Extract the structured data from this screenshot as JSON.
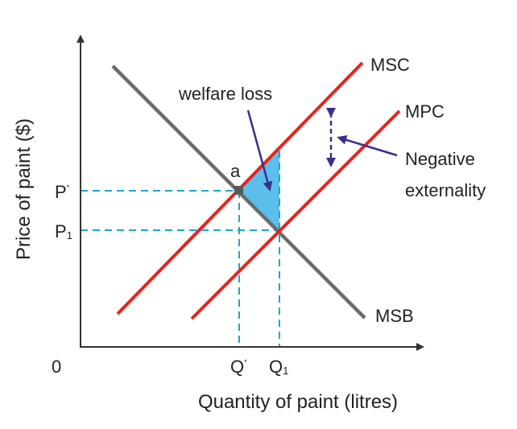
{
  "diagram": {
    "x_axis_title": "Quantity of paint (litres)",
    "y_axis_title": "Price of paint ($)",
    "origin_label": "0",
    "ticks": {
      "p_star": {
        "base": "P",
        "mark": "*"
      },
      "p1": {
        "base": "P",
        "mark": "1"
      },
      "q_star": {
        "base": "Q",
        "mark": "*"
      },
      "q1": {
        "base": "Q",
        "mark": "1"
      }
    },
    "curves": {
      "msc": "MSC",
      "mpc": "MPC",
      "msb": "MSB"
    },
    "point_a": "a",
    "annotations": {
      "welfare_loss": "welfare loss",
      "negative_externality_line1": "Negative",
      "negative_externality_line2": "externality"
    },
    "colors": {
      "cost_curves": "#e8231c",
      "benefit_curve": "#6b6b6b",
      "guides": "#1aa6d6",
      "welfare_triangle": "#3fb3e6",
      "arrows": "#3a2f8f",
      "axes": "#333333"
    }
  }
}
